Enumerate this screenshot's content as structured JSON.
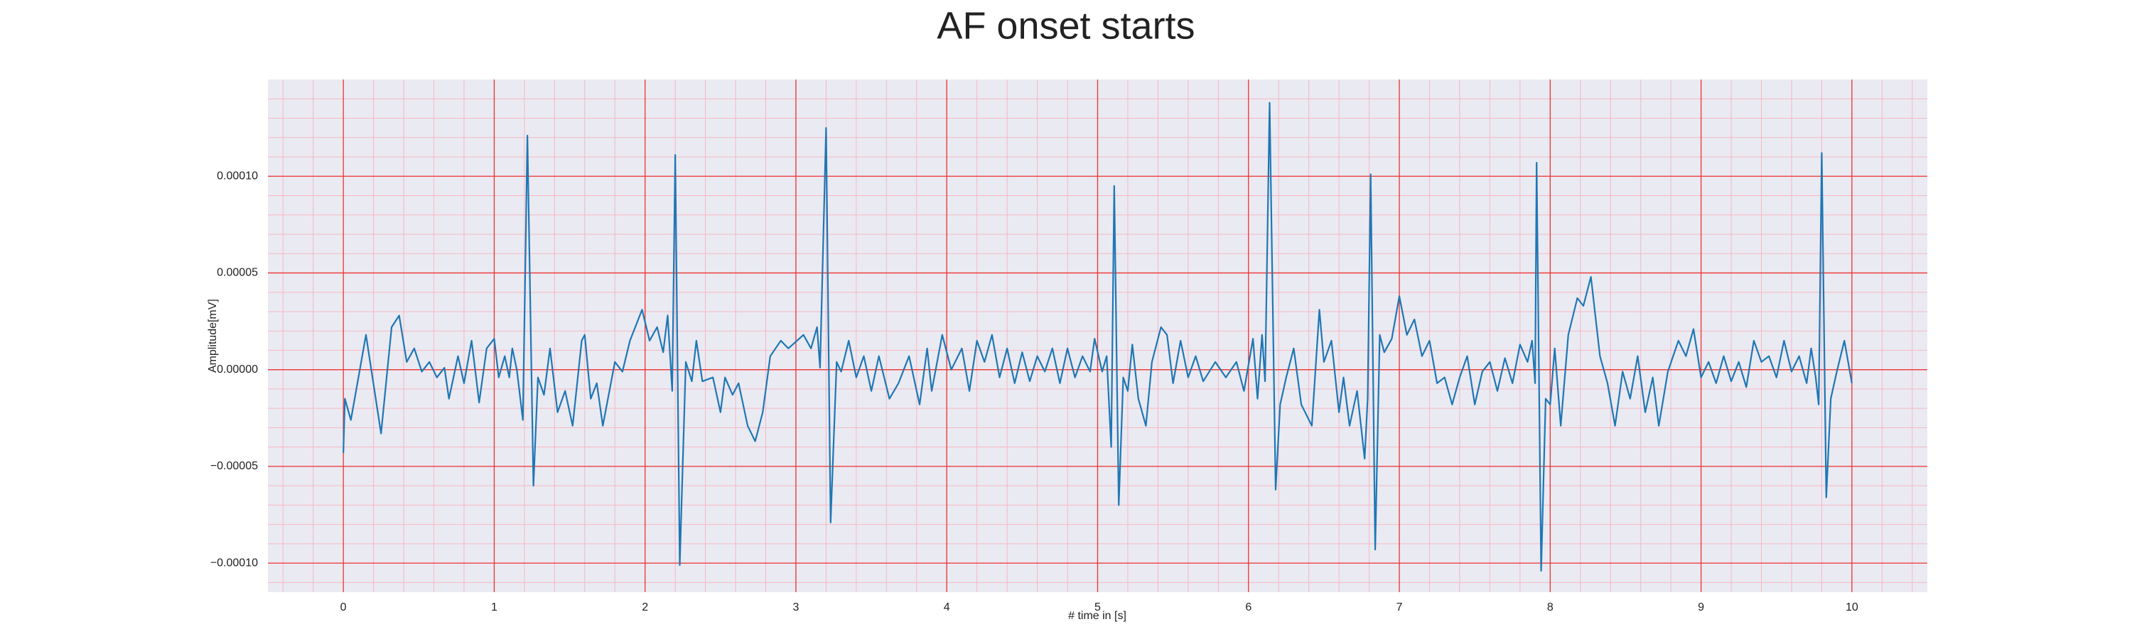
{
  "chart_data": {
    "type": "line",
    "title": "AF onset starts",
    "xlabel": "# time in [s]",
    "ylabel": "Amplitude[mV]",
    "xlim": [
      -0.5,
      10.5
    ],
    "xticks": [
      0,
      1,
      2,
      3,
      4,
      5,
      6,
      7,
      8,
      9,
      10
    ],
    "ylim": [
      -0.000115,
      0.00015
    ],
    "yticks": [
      {
        "value": -0.0001,
        "label": "−0.00010"
      },
      {
        "value": -5e-05,
        "label": "−0.00005"
      },
      {
        "value": 0,
        "label": "0.00000"
      },
      {
        "value": 5e-05,
        "label": "0.00005"
      },
      {
        "value": 0.0001,
        "label": "0.00010"
      }
    ],
    "grid": true,
    "minor_grid": {
      "x_step": 0.2,
      "y_step": 1e-05
    },
    "x": [
      0,
      0.01,
      0.05,
      0.15,
      0.25,
      0.32,
      0.37,
      0.42,
      0.47,
      0.52,
      0.57,
      0.62,
      0.67,
      0.7,
      0.76,
      0.8,
      0.85,
      0.88,
      0.9,
      0.95,
      1.0,
      1.03,
      1.07,
      1.1,
      1.12,
      1.15,
      1.19,
      1.22,
      1.26,
      1.29,
      1.33,
      1.37,
      1.42,
      1.47,
      1.52,
      1.58,
      1.6,
      1.64,
      1.68,
      1.72,
      1.8,
      1.85,
      1.9,
      1.98,
      2.03,
      2.08,
      2.12,
      2.15,
      2.18,
      2.2,
      2.23,
      2.27,
      2.31,
      2.34,
      2.38,
      2.45,
      2.5,
      2.53,
      2.58,
      2.62,
      2.68,
      2.73,
      2.78,
      2.83,
      2.9,
      2.95,
      3.05,
      3.1,
      3.14,
      3.16,
      3.2,
      3.23,
      3.27,
      3.3,
      3.35,
      3.4,
      3.45,
      3.5,
      3.55,
      3.62,
      3.68,
      3.75,
      3.82,
      3.87,
      3.9,
      3.97,
      4.03,
      4.1,
      4.15,
      4.2,
      4.25,
      4.3,
      4.35,
      4.4,
      4.45,
      4.5,
      4.55,
      4.6,
      4.65,
      4.7,
      4.75,
      4.8,
      4.85,
      4.9,
      4.95,
      4.98,
      5.03,
      5.06,
      5.09,
      5.11,
      5.14,
      5.17,
      5.2,
      5.23,
      5.27,
      5.32,
      5.36,
      5.42,
      5.46,
      5.5,
      5.55,
      5.6,
      5.65,
      5.7,
      5.78,
      5.85,
      5.92,
      5.97,
      6.03,
      6.06,
      6.09,
      6.11,
      6.14,
      6.18,
      6.21,
      6.25,
      6.3,
      6.35,
      6.42,
      6.47,
      6.5,
      6.55,
      6.6,
      6.63,
      6.67,
      6.72,
      6.77,
      6.79,
      6.81,
      6.84,
      6.87,
      6.9,
      6.95,
      7.0,
      7.05,
      7.1,
      7.15,
      7.2,
      7.25,
      7.3,
      7.35,
      7.4,
      7.45,
      7.5,
      7.55,
      7.6,
      7.65,
      7.7,
      7.75,
      7.8,
      7.85,
      7.88,
      7.9,
      7.91,
      7.94,
      7.97,
      8.0,
      8.03,
      8.07,
      8.12,
      8.18,
      8.22,
      8.27,
      8.33,
      8.38,
      8.43,
      8.48,
      8.53,
      8.58,
      8.63,
      8.68,
      8.72,
      8.78,
      8.85,
      8.9,
      8.95,
      9.0,
      9.05,
      9.1,
      9.15,
      9.2,
      9.25,
      9.3,
      9.35,
      9.4,
      9.45,
      9.5,
      9.55,
      9.6,
      9.65,
      9.7,
      9.73,
      9.76,
      9.78,
      9.8,
      9.83,
      9.86,
      9.9,
      9.95,
      10.0
    ],
    "series": [
      {
        "color": "#1f77b4",
        "values": [
          -4.3e-05,
          -1.5e-05,
          -2.6e-05,
          1.8e-05,
          -3.3e-05,
          2.2e-05,
          2.8e-05,
          4e-06,
          1.1e-05,
          -1e-06,
          4e-06,
          -4e-06,
          1e-06,
          -1.5e-05,
          7e-06,
          -7e-06,
          1.5e-05,
          -4e-06,
          -1.7e-05,
          1.1e-05,
          1.6e-05,
          -4e-06,
          7e-06,
          -4e-06,
          1.1e-05,
          0,
          -2.6e-05,
          0.000121,
          -6e-05,
          -4e-06,
          -1.3e-05,
          1.1e-05,
          -2.2e-05,
          -1.1e-05,
          -2.9e-05,
          1.5e-05,
          1.8e-05,
          -1.5e-05,
          -7e-06,
          -2.9e-05,
          4e-06,
          -1e-06,
          1.5e-05,
          3.1e-05,
          1.5e-05,
          2.2e-05,
          9e-06,
          2.8e-05,
          -1.1e-05,
          0.000111,
          -0.000101,
          4e-06,
          -6e-06,
          1.5e-05,
          -6e-06,
          -4e-06,
          -2.2e-05,
          -4e-06,
          -1.3e-05,
          -7e-06,
          -2.9e-05,
          -3.7e-05,
          -2.2e-05,
          7e-06,
          1.5e-05,
          1.1e-05,
          1.8e-05,
          1.1e-05,
          2.2e-05,
          1e-06,
          0.000125,
          -7.9e-05,
          4e-06,
          -1e-06,
          1.5e-05,
          -4e-06,
          7e-06,
          -1.1e-05,
          7e-06,
          -1.5e-05,
          -7e-06,
          7e-06,
          -1.8e-05,
          1.1e-05,
          -1.1e-05,
          1.8e-05,
          0,
          1.1e-05,
          -1.1e-05,
          1.5e-05,
          4e-06,
          1.8e-05,
          -4e-06,
          1.1e-05,
          -7e-06,
          9e-06,
          -6e-06,
          7e-06,
          -1e-06,
          1.1e-05,
          -7e-06,
          1.1e-05,
          -4e-06,
          7e-06,
          -1e-06,
          1.6e-05,
          -1e-06,
          7e-06,
          -4e-05,
          9.5e-05,
          -7e-05,
          -4e-06,
          -1.1e-05,
          1.3e-05,
          -1.5e-05,
          -2.9e-05,
          4e-06,
          2.2e-05,
          1.8e-05,
          -7e-06,
          1.5e-05,
          -4e-06,
          7e-06,
          -6e-06,
          4e-06,
          -4e-06,
          4e-06,
          -1.1e-05,
          1.6e-05,
          -1.5e-05,
          1.8e-05,
          -6e-06,
          0.000138,
          -6.2e-05,
          -1.8e-05,
          -4e-06,
          1.1e-05,
          -1.8e-05,
          -2.9e-05,
          3.1e-05,
          4e-06,
          1.5e-05,
          -2.2e-05,
          -4e-06,
          -2.9e-05,
          -1.1e-05,
          -4.6e-05,
          -1.5e-05,
          0.000101,
          -9.3e-05,
          1.8e-05,
          9e-06,
          1.6e-05,
          3.8e-05,
          1.8e-05,
          2.6e-05,
          7e-06,
          1.5e-05,
          -7e-06,
          -4e-06,
          -1.8e-05,
          -4e-06,
          7e-06,
          -1.8e-05,
          -1e-06,
          4e-06,
          -1.1e-05,
          6e-06,
          -7e-06,
          1.3e-05,
          4e-06,
          1.5e-05,
          -7e-06,
          0.000107,
          -0.000104,
          -1.5e-05,
          -1.8e-05,
          1.1e-05,
          -2.9e-05,
          1.8e-05,
          3.7e-05,
          3.3e-05,
          4.8e-05,
          7e-06,
          -7e-06,
          -2.9e-05,
          -1e-06,
          -1.5e-05,
          7e-06,
          -2.2e-05,
          -4e-06,
          -2.9e-05,
          -1e-06,
          1.5e-05,
          7e-06,
          2.1e-05,
          -4e-06,
          4e-06,
          -7e-06,
          7e-06,
          -6e-06,
          4e-06,
          -9e-06,
          1.5e-05,
          4e-06,
          7e-06,
          -4e-06,
          1.5e-05,
          -1e-06,
          7e-06,
          -7e-06,
          1.1e-05,
          -4e-06,
          -1.8e-05,
          0.000112,
          -6.6e-05,
          -1.5e-05,
          -1e-06,
          1.5e-05,
          -7e-06
        ]
      }
    ]
  }
}
